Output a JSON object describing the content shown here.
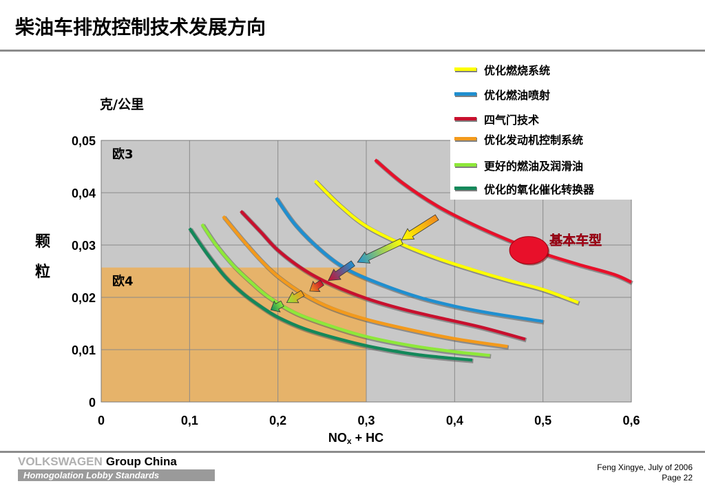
{
  "header": {
    "title": "柴油车排放控制技术发展方向"
  },
  "footer": {
    "brand_volkswagen": "VOLKSWAGEN",
    "brand_group": "Group China",
    "subtitle": "Homogolation Lobby Standards",
    "author": "Feng Xingye, July of  2006",
    "page": "Page 22"
  },
  "chart_data": {
    "type": "line",
    "title": "",
    "xlabel_main": "NO",
    "xlabel_sub": "x",
    "xlabel_tail": " + HC",
    "ylabel_lines": [
      "颗",
      "粒"
    ],
    "yunit": "克/公里",
    "xlim": [
      0,
      0.6
    ],
    "ylim": [
      0,
      0.05
    ],
    "x_ticks": [
      "0",
      "0,1",
      "0,2",
      "0,3",
      "0,4",
      "0,5",
      "0,6"
    ],
    "y_ticks": [
      "0",
      "0,01",
      "0,02",
      "0,03",
      "0,04",
      "0,05"
    ],
    "grid": true,
    "regions": [
      {
        "label": "欧3",
        "x": [
          0,
          0.6
        ],
        "y": [
          0,
          0.05
        ],
        "color": "#c8c8c8"
      },
      {
        "label": "欧4",
        "x": [
          0,
          0.3
        ],
        "y": [
          0,
          0.0257
        ],
        "color": "#e6b36a"
      }
    ],
    "series": [
      {
        "name": "优化燃烧系统",
        "color": "#ffff00",
        "x": [
          0.242,
          0.27,
          0.3,
          0.34,
          0.38,
          0.42,
          0.46,
          0.5,
          0.54
        ],
        "y": [
          0.0423,
          0.0376,
          0.0336,
          0.0302,
          0.0275,
          0.0253,
          0.0233,
          0.0215,
          0.019
        ]
      },
      {
        "name": "优化燃油喷射",
        "color": "#1f8fd0",
        "x": [
          0.198,
          0.22,
          0.25,
          0.28,
          0.32,
          0.36,
          0.4,
          0.44,
          0.5
        ],
        "y": [
          0.039,
          0.0338,
          0.0288,
          0.0252,
          0.0223,
          0.02,
          0.0183,
          0.017,
          0.0154
        ]
      },
      {
        "name": "四气门技术",
        "color": "#c8102e",
        "x": [
          0.158,
          0.18,
          0.2,
          0.23,
          0.26,
          0.3,
          0.34,
          0.38,
          0.43,
          0.48
        ],
        "y": [
          0.0365,
          0.0326,
          0.029,
          0.0252,
          0.0225,
          0.0198,
          0.0178,
          0.0162,
          0.0143,
          0.012
        ]
      },
      {
        "name": "优化发动机控制系统",
        "color": "#f39a1c",
        "x": [
          0.138,
          0.16,
          0.18,
          0.2,
          0.23,
          0.26,
          0.3,
          0.35,
          0.4,
          0.46
        ],
        "y": [
          0.0355,
          0.031,
          0.0272,
          0.024,
          0.0205,
          0.018,
          0.0158,
          0.0138,
          0.0121,
          0.0106
        ]
      },
      {
        "name": "更好的燃油及润滑油",
        "color": "#8ee83a",
        "x": [
          0.114,
          0.13,
          0.15,
          0.17,
          0.19,
          0.22,
          0.26,
          0.3,
          0.35,
          0.4,
          0.44
        ],
        "y": [
          0.034,
          0.03,
          0.026,
          0.0228,
          0.02,
          0.017,
          0.0145,
          0.0125,
          0.0108,
          0.0096,
          0.0089
        ]
      },
      {
        "name": "优化的氧化催化转换器",
        "color": "#13885a",
        "x": [
          0.1,
          0.12,
          0.14,
          0.16,
          0.18,
          0.2,
          0.23,
          0.27,
          0.31,
          0.36,
          0.42
        ],
        "y": [
          0.0332,
          0.0283,
          0.024,
          0.0208,
          0.0183,
          0.0162,
          0.014,
          0.012,
          0.0104,
          0.009,
          0.008
        ]
      },
      {
        "name": "",
        "color": "#e8102a",
        "x": [
          0.31,
          0.34,
          0.38,
          0.42,
          0.46,
          0.5,
          0.54,
          0.58,
          0.6
        ],
        "y": [
          0.0463,
          0.042,
          0.0375,
          0.034,
          0.031,
          0.0284,
          0.0263,
          0.0244,
          0.0229
        ]
      }
    ],
    "base_point": {
      "label": "基本车型",
      "x": 0.484,
      "y": 0.029,
      "color": "#e8102a"
    },
    "arrows": [
      {
        "from": [
          0.38,
          0.0353
        ],
        "to": [
          0.34,
          0.031
        ],
        "color_from": "#f08a1c",
        "color_to": "#ffff00"
      },
      {
        "from": [
          0.34,
          0.0307
        ],
        "to": [
          0.29,
          0.0267
        ],
        "color_from": "#ffff00",
        "color_to": "#2090d0"
      },
      {
        "from": [
          0.285,
          0.0265
        ],
        "to": [
          0.257,
          0.0232
        ],
        "color_from": "#2090d0",
        "color_to": "#c8102e"
      },
      {
        "from": [
          0.25,
          0.0228
        ],
        "to": [
          0.236,
          0.0212
        ],
        "color_from": "#c8102e",
        "color_to": "#f39a1c"
      },
      {
        "from": [
          0.228,
          0.0208
        ],
        "to": [
          0.21,
          0.019
        ],
        "color_from": "#f39a1c",
        "color_to": "#8ee83a"
      },
      {
        "from": [
          0.205,
          0.0188
        ],
        "to": [
          0.192,
          0.0176
        ],
        "color_from": "#8ee83a",
        "color_to": "#13885a"
      }
    ]
  }
}
